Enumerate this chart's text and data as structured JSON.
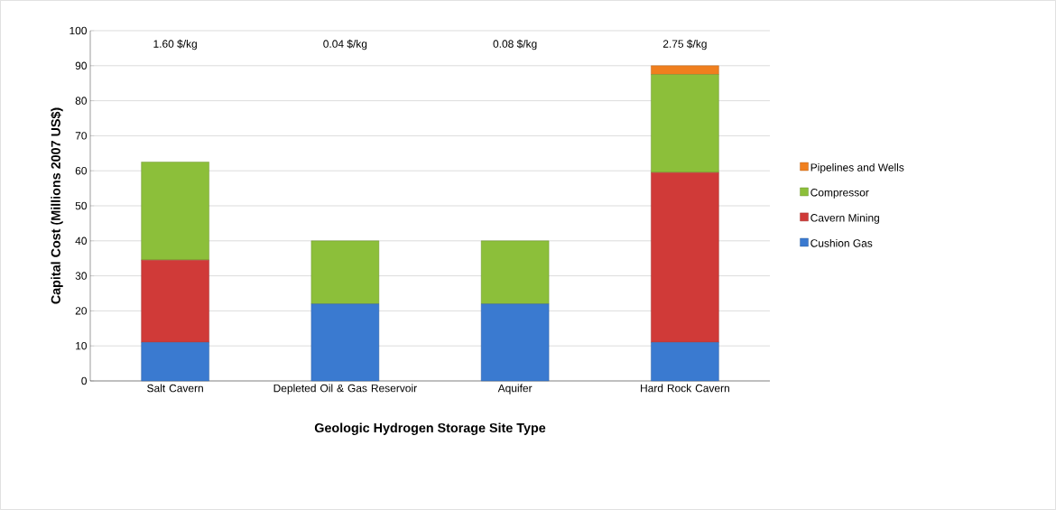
{
  "chart_data": {
    "type": "bar",
    "stacked": true,
    "xlabel": "Geologic Hydrogen Storage  Site Type",
    "ylabel": "Capital Cost (Millions 2007 US$)",
    "categories": [
      "Salt Cavern",
      "Depleted Oil & Gas Reservoir",
      "Aquifer",
      "Hard Rock Cavern"
    ],
    "series": [
      {
        "name": "Cushion Gas",
        "color": "#3a7ad0",
        "values": [
          11,
          22,
          22,
          11
        ]
      },
      {
        "name": "Cavern Mining",
        "color": "#d03a38",
        "values": [
          23.5,
          0,
          0,
          48.5
        ]
      },
      {
        "name": "Compressor",
        "color": "#8cbf3a",
        "values": [
          28,
          18,
          18,
          28
        ]
      },
      {
        "name": "Pipelines and Wells",
        "color": "#f07f1e",
        "values": [
          0,
          0,
          0,
          2.5
        ]
      }
    ],
    "ylim": [
      0,
      100
    ],
    "yticks": [
      0,
      10,
      20,
      30,
      40,
      50,
      60,
      70,
      80,
      90,
      100
    ],
    "grid": "y",
    "legend": "right",
    "annotations": [
      "1.60 $/kg",
      "0.04 $/kg",
      "0.08 $/kg",
      "2.75 $/kg"
    ]
  }
}
